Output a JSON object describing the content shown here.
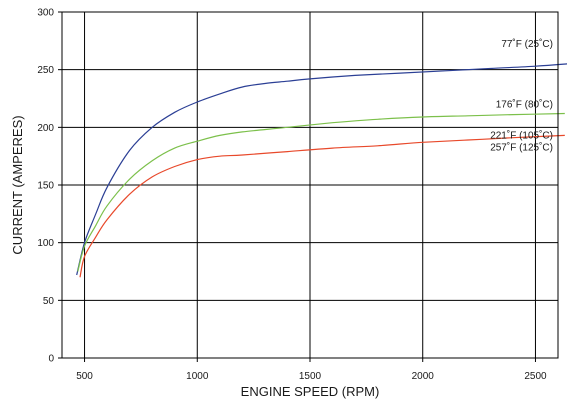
{
  "chart_data": {
    "type": "line",
    "title": "",
    "xlabel": "ENGINE SPEED (RPM)",
    "ylabel": "CURRENT (AMPERES)",
    "xlim": [
      400,
      2600
    ],
    "ylim": [
      0,
      300
    ],
    "xticks": [
      500,
      1000,
      1500,
      2000,
      2500
    ],
    "yticks": [
      0,
      50,
      100,
      150,
      200,
      250,
      300
    ],
    "grid": true,
    "series": [
      {
        "name": "77˚F (25˚C)",
        "color": "#2b3f95",
        "x": [
          465,
          500,
          550,
          600,
          700,
          800,
          900,
          1000,
          1100,
          1200,
          1300,
          1400,
          1500,
          1700,
          1900,
          2100,
          2300,
          2500,
          2640
        ],
        "y": [
          72,
          100,
          125,
          148,
          180,
          200,
          213,
          222,
          229,
          235,
          238,
          240,
          242,
          245,
          247,
          249,
          251,
          253,
          255
        ]
      },
      {
        "name": "176˚F (80˚C)",
        "color": "#7cc04b",
        "x": [
          470,
          500,
          550,
          600,
          700,
          800,
          900,
          1000,
          1100,
          1200,
          1400,
          1600,
          1800,
          2000,
          2200,
          2400,
          2630
        ],
        "y": [
          75,
          97,
          115,
          132,
          155,
          171,
          182,
          188,
          193,
          196,
          200,
          204,
          207,
          209,
          210,
          211,
          212
        ]
      },
      {
        "name": "221˚F (105˚C)",
        "color": "#e8492b",
        "x": [
          480,
          500,
          550,
          600,
          700,
          800,
          900,
          1000,
          1100,
          1200,
          1400,
          1600,
          1800,
          2000,
          2200,
          2400,
          2630
        ],
        "y": [
          70,
          88,
          105,
          120,
          142,
          157,
          166,
          172,
          175,
          176,
          179,
          182,
          184,
          187,
          189,
          191,
          193
        ]
      }
    ],
    "extra_labels": [
      "257˚F (125˚C)"
    ]
  }
}
